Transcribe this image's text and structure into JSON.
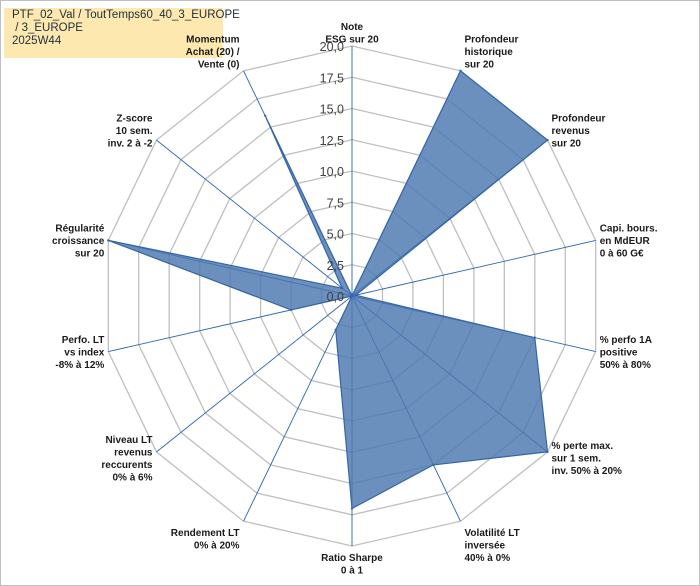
{
  "header": {
    "title_lines": [
      "PTF_02_Val / ToutTemps60_40_3_EUROPE",
      " / 3_EUROPE",
      "2025W44"
    ]
  },
  "colors": {
    "fill": "#4a78b0",
    "stroke": "#3566a6",
    "grid": "#bfbfbf",
    "spoke": "#2e64b4",
    "title_bg": "#fde9b0"
  },
  "chart_data": {
    "type": "radar",
    "title": "PTF_02_Val / ToutTemps60_40_3_EUROPE / 3_EUROPE 2025W44",
    "rmin": 0,
    "rmax": 20,
    "ticks": [
      "0,0",
      "2,5",
      "5,0",
      "7,5",
      "10,0",
      "12,5",
      "15,0",
      "17,5",
      "20,0"
    ],
    "grid": true,
    "axes": [
      [
        "Note",
        "ESG sur 20"
      ],
      [
        "Profondeur",
        "historique",
        "sur 20"
      ],
      [
        "Profondeur",
        "revenus",
        "sur 20"
      ],
      [
        "Capi. bours.",
        "en MdEUR",
        "0 à 60 G€"
      ],
      [
        "% perfo 1A",
        "positive",
        "50% à 80%"
      ],
      [
        "% perte max.",
        "sur 1 sem.",
        "inv. 50% à 20%"
      ],
      [
        "Volatilité LT",
        "inversée",
        "40% à 0%"
      ],
      [
        "Ratio Sharpe",
        "0 à 1"
      ],
      [
        "Rendement LT",
        "0% à 20%"
      ],
      [
        "Niveau LT",
        "revenus",
        "reccurents",
        "0% à 6%"
      ],
      [
        "Perfo. LT",
        "vs index",
        "-8% à 12%"
      ],
      [
        "Régularité",
        "croissance",
        "sur 20"
      ],
      [
        "Z-score",
        "10 sem.",
        "inv. 2 à -2"
      ],
      [
        "Momentum",
        "Achat (20) /",
        "Vente (0)"
      ]
    ],
    "series": [
      {
        "name": "PTF_02_Val",
        "values": [
          0.0,
          20.0,
          20.0,
          0.3,
          15.0,
          20.0,
          15.0,
          17.0,
          3.0,
          0.0,
          5.0,
          20.0,
          1.0,
          16.0
        ]
      }
    ]
  }
}
